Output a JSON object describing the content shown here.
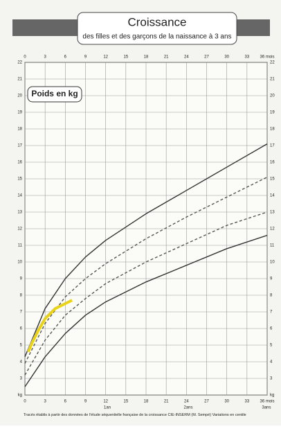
{
  "chart_data": {
    "type": "line",
    "title": "Croissance",
    "subtitle": "des filles et des garçons de la naissance à 3 ans",
    "y_label": "Poids en kg",
    "annotations": [
      "1an",
      "2ans",
      "3ans"
    ],
    "footnote": "Tracés établis à partir des données de l'étude séquentielle française de la croissance CIE-INSERM (M. Sempé) Variations en centile",
    "xlim": [
      0,
      36
    ],
    "xticks": [
      0,
      3,
      6,
      9,
      12,
      15,
      18,
      21,
      24,
      27,
      30,
      33,
      {
        "value": 36,
        "label": "36 mois"
      }
    ],
    "ylim": [
      2,
      22
    ],
    "yticks": [
      {
        "value": 2,
        "label": "kg"
      },
      3,
      4,
      5,
      6,
      7,
      8,
      9,
      10,
      11,
      12,
      13,
      14,
      15,
      16,
      17,
      18,
      19,
      20,
      21,
      22
    ],
    "grid": true,
    "series": [
      {
        "color": "#333333",
        "dash": false,
        "x": [
          0,
          3,
          6,
          9,
          12,
          18,
          24,
          30,
          36
        ],
        "values": [
          4.3,
          7.2,
          9.0,
          10.3,
          11.3,
          12.9,
          14.3,
          15.7,
          17.1
        ]
      },
      {
        "color": "#555555",
        "dash": true,
        "x": [
          0,
          3,
          6,
          9,
          12,
          18,
          24,
          30,
          36
        ],
        "values": [
          3.9,
          6.3,
          7.9,
          9.0,
          9.9,
          11.4,
          12.7,
          13.9,
          15.1
        ]
      },
      {
        "color": "#555555",
        "dash": true,
        "x": [
          0,
          3,
          6,
          9,
          12,
          18,
          24,
          30,
          36
        ],
        "values": [
          3.2,
          5.3,
          6.8,
          7.8,
          8.7,
          10.0,
          11.1,
          12.2,
          13.0
        ]
      },
      {
        "color": "#333333",
        "dash": false,
        "x": [
          0,
          3,
          6,
          9,
          12,
          18,
          24,
          30,
          36
        ],
        "values": [
          2.5,
          4.3,
          5.7,
          6.8,
          7.6,
          8.8,
          9.8,
          10.8,
          11.6
        ]
      },
      {
        "color": "#e8d21a",
        "dash": false,
        "x": [
          0.5,
          1,
          2,
          3,
          4.5,
          6,
          7
        ],
        "values": [
          4.6,
          5.1,
          5.9,
          6.6,
          7.2,
          7.5,
          7.7
        ]
      }
    ]
  }
}
